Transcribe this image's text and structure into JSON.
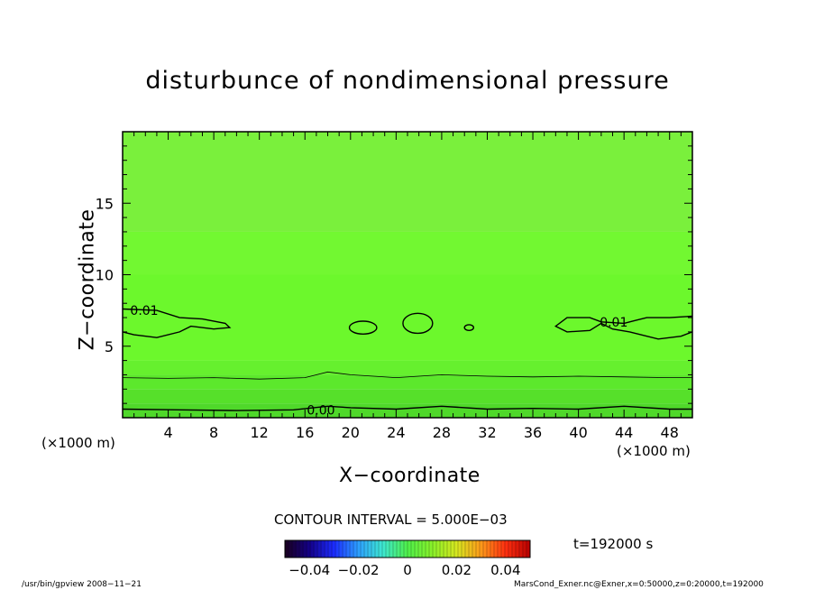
{
  "chart_data": {
    "type": "heatmap",
    "title": "disturbunce of nondimensional pressure",
    "xlabel": "X−coordinate",
    "ylabel": "Z−coordinate",
    "xunit_left": "(×1000 m)",
    "xunit_right": "(×1000 m)",
    "xlim": [
      0,
      50
    ],
    "ylim": [
      0,
      20
    ],
    "x_ticks": [
      4,
      8,
      12,
      16,
      20,
      24,
      28,
      32,
      36,
      40,
      44,
      48
    ],
    "x_tick_labels": [
      "4",
      "8",
      "12",
      "16",
      "20",
      "24",
      "28",
      "32",
      "36",
      "40",
      "44",
      "48"
    ],
    "y_ticks": [
      5,
      10,
      15
    ],
    "y_tick_labels": [
      "5",
      "10",
      "15"
    ],
    "field_bands": [
      {
        "z0": 0,
        "z1": 1,
        "color": "#4fd82a"
      },
      {
        "z0": 1,
        "z1": 2,
        "color": "#56e02a"
      },
      {
        "z0": 2,
        "z1": 3,
        "color": "#5ce82c"
      },
      {
        "z0": 3,
        "z1": 4,
        "color": "#66f02e"
      },
      {
        "z0": 4,
        "z1": 10,
        "color": "#6cf82c"
      },
      {
        "z0": 10,
        "z1": 13,
        "color": "#72f831"
      },
      {
        "z0": 13,
        "z1": 20,
        "color": "#7af03c"
      }
    ],
    "contours": [
      {
        "level": "0.00",
        "points": [
          [
            0,
            0.6
          ],
          [
            5,
            0.55
          ],
          [
            10,
            0.5
          ],
          [
            15,
            0.55
          ],
          [
            18,
            0.8
          ],
          [
            20,
            0.7
          ],
          [
            24,
            0.6
          ],
          [
            28,
            0.8
          ],
          [
            32,
            0.6
          ],
          [
            36,
            0.65
          ],
          [
            40,
            0.6
          ],
          [
            44,
            0.8
          ],
          [
            48,
            0.6
          ],
          [
            50,
            0.6
          ]
        ]
      },
      {
        "level": "thin",
        "points": [
          [
            0,
            2.8
          ],
          [
            4,
            2.75
          ],
          [
            8,
            2.8
          ],
          [
            12,
            2.7
          ],
          [
            16,
            2.8
          ],
          [
            18,
            3.2
          ],
          [
            20,
            3.0
          ],
          [
            24,
            2.8
          ],
          [
            28,
            3.0
          ],
          [
            32,
            2.9
          ],
          [
            36,
            2.85
          ],
          [
            40,
            2.9
          ],
          [
            44,
            2.85
          ],
          [
            48,
            2.8
          ],
          [
            50,
            2.8
          ]
        ]
      },
      {
        "level": "0.01",
        "points": [
          [
            0,
            7.6
          ],
          [
            3,
            7.5
          ],
          [
            5,
            7.0
          ],
          [
            7,
            6.9
          ],
          [
            9,
            6.6
          ],
          [
            9.4,
            6.3
          ],
          [
            8,
            6.2
          ],
          [
            6,
            6.4
          ],
          [
            5,
            6.0
          ],
          [
            3,
            5.6
          ],
          [
            1,
            5.8
          ],
          [
            0,
            6.0
          ]
        ]
      },
      {
        "level": "0.01",
        "points": [
          [
            50,
            7.1
          ],
          [
            48,
            7.0
          ],
          [
            46,
            7.0
          ],
          [
            45,
            6.8
          ],
          [
            44,
            6.6
          ],
          [
            42,
            6.7
          ],
          [
            41,
            7.0
          ],
          [
            39,
            7.0
          ],
          [
            38,
            6.4
          ],
          [
            39,
            6.0
          ],
          [
            41,
            6.1
          ],
          [
            42,
            6.6
          ],
          [
            43,
            6.2
          ],
          [
            44.5,
            6.0
          ],
          [
            47,
            5.5
          ],
          [
            49,
            5.7
          ],
          [
            50,
            6.0
          ]
        ]
      }
    ],
    "contour_labels": [
      {
        "text": "0.01",
        "x": 1.9,
        "z": 7.5
      },
      {
        "text": "0.01",
        "x": 43.1,
        "z": 6.7
      },
      {
        "text": "0.00",
        "x": 17.4,
        "z": 0.55
      }
    ],
    "closed_contours": [
      {
        "cx": 21.1,
        "cz": 6.3,
        "rx": 1.2,
        "rz": 0.45
      },
      {
        "cx": 25.9,
        "cz": 6.6,
        "rx": 1.3,
        "rz": 0.7
      },
      {
        "cx": 30.4,
        "cz": 6.3,
        "rx": 0.4,
        "rz": 0.2
      }
    ],
    "colorbar": {
      "tick_labels": [
        "−0.04",
        "−0.02",
        "0",
        "0.02",
        "0.04"
      ],
      "tick_values": [
        -0.04,
        -0.02,
        0,
        0.02,
        0.04
      ],
      "range": [
        -0.05,
        0.05
      ],
      "stops": [
        "#1a001e",
        "#140088",
        "#1c2cff",
        "#2da0ff",
        "#3ee8d0",
        "#4ff04a",
        "#88f02a",
        "#d6e820",
        "#ff9a1a",
        "#ff3010",
        "#b80000"
      ]
    }
  },
  "interval_label": "CONTOUR INTERVAL = 5.000E−03",
  "time_label": "t=192000 s",
  "footer_left": "/usr/bin/gpview   2008−11−21",
  "footer_right": "MarsCond_Exner.nc@Exner,x=0:50000,z=0:20000,t=192000"
}
